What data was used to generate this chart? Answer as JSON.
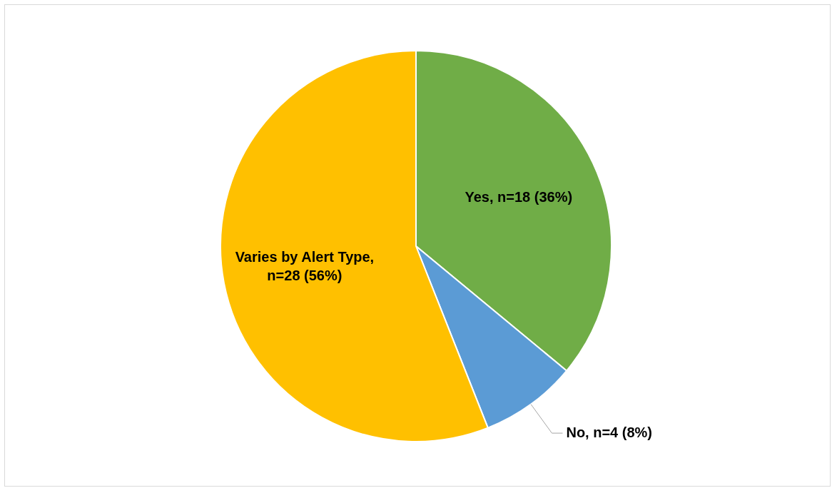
{
  "chart_data": {
    "type": "pie",
    "categories": [
      "Yes, n=18 (36%)",
      "No, n=4 (8%)",
      "Varies by Alert Type, n=28 (56%)"
    ],
    "values": [
      18,
      4,
      28
    ],
    "colors": [
      "#70ad47",
      "#5b9bd5",
      "#ffc000"
    ],
    "legend": false
  }
}
